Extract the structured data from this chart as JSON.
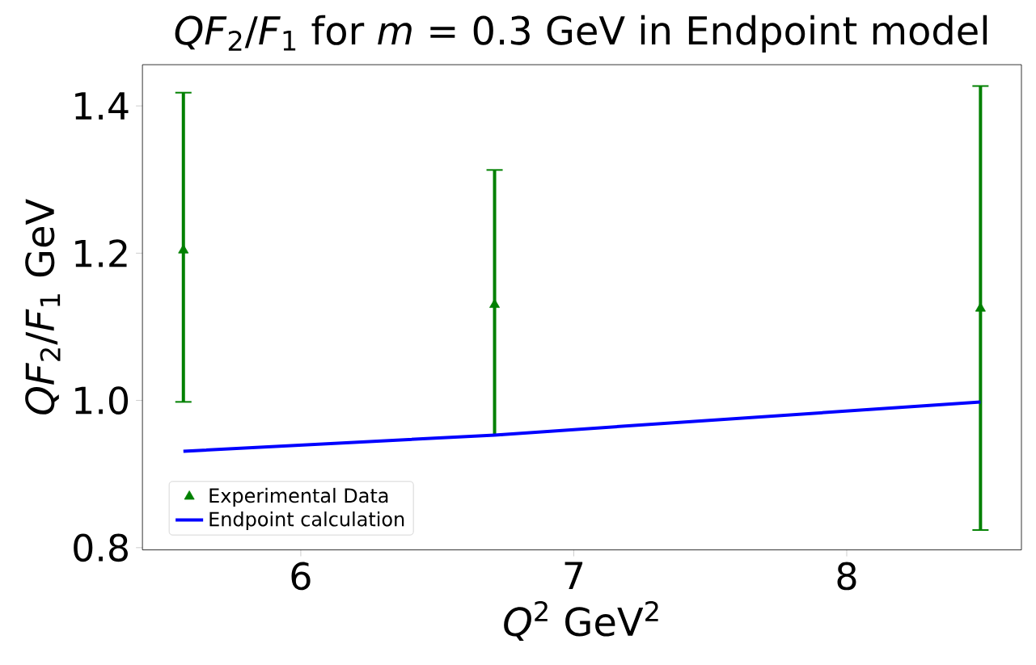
{
  "chart_data": {
    "type": "scatter",
    "title": "*QF*$_{2}$/*F*$_{1}$ for *m* = 0.3 GeV in Endpoint model",
    "xlabel": "*Q*$^{2}$ GeV$^{2}$",
    "ylabel": "*QF*$_{2}$/*F*$_{1}$ GeV",
    "xlim": [
      5.42,
      8.64
    ],
    "ylim": [
      0.797,
      1.456
    ],
    "xticks": [
      6,
      7,
      8
    ],
    "yticks": [
      {
        "value": 0.8,
        "label": "0.8"
      },
      {
        "value": 1.0,
        "label": "1.0"
      },
      {
        "value": 1.2,
        "label": "1.2"
      },
      {
        "value": 1.4,
        "label": "1.4"
      }
    ],
    "grid": false,
    "legend": "bottom left",
    "series": [
      {
        "name": "Experimental Data",
        "marker": "triangle",
        "color": "#008000",
        "x": [
          5.57,
          6.71,
          8.49
        ],
        "values": [
          1.204,
          1.13,
          1.125
        ],
        "errors": [
          [
            0.998,
            1.418
          ],
          [
            0.953,
            1.313
          ],
          [
            0.824,
            1.427
          ]
        ]
      },
      {
        "name": "Endpoint calculation",
        "type": "line",
        "color": "#0000ff",
        "x": [
          5.57,
          6.71,
          8.49
        ],
        "values": [
          0.931,
          0.953,
          0.998
        ]
      }
    ]
  }
}
